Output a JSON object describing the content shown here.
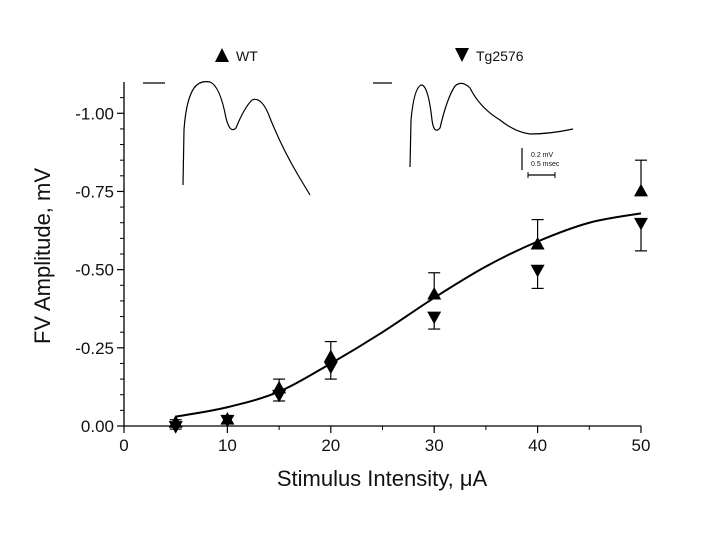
{
  "chart_data": {
    "type": "scatter",
    "title": "",
    "xlabel": "Stimulus Intensity, μA",
    "ylabel": "FV Amplitude, mV",
    "xlim": [
      0,
      50
    ],
    "ylim": [
      0,
      -1.1
    ],
    "x_ticks": [
      "0",
      "10",
      "20",
      "30",
      "40",
      "50"
    ],
    "y_ticks": [
      "0.00",
      "-0.25",
      "-0.50",
      "-0.75",
      "-1.00"
    ],
    "series": [
      {
        "name": "WT",
        "marker": "triangle-up",
        "x": [
          5,
          10,
          15,
          20,
          30,
          40,
          50
        ],
        "y": [
          -0.01,
          -0.02,
          -0.12,
          -0.22,
          -0.42,
          -0.58,
          -0.75
        ],
        "error": [
          0.01,
          0.01,
          0.03,
          0.05,
          0.07,
          0.08,
          0.1
        ]
      },
      {
        "name": "Tg2576",
        "marker": "triangle-down",
        "x": [
          5,
          10,
          15,
          20,
          30,
          40,
          50
        ],
        "y": [
          -0.0,
          -0.02,
          -0.1,
          -0.19,
          -0.35,
          -0.5,
          -0.65
        ],
        "error": [
          0.01,
          0.01,
          0.02,
          0.04,
          0.04,
          0.06,
          0.09
        ]
      }
    ],
    "fit_curve": {
      "type": "sigmoid",
      "x": [
        5,
        10,
        15,
        20,
        25,
        30,
        35,
        40,
        45,
        50
      ],
      "y": [
        -0.03,
        -0.06,
        -0.11,
        -0.2,
        -0.3,
        -0.41,
        -0.51,
        -0.59,
        -0.65,
        -0.68
      ]
    },
    "scale_bar": {
      "voltage_label": "0.2 mV",
      "time_label": "0.5 msec"
    },
    "grid": false,
    "legend_position": "top"
  }
}
